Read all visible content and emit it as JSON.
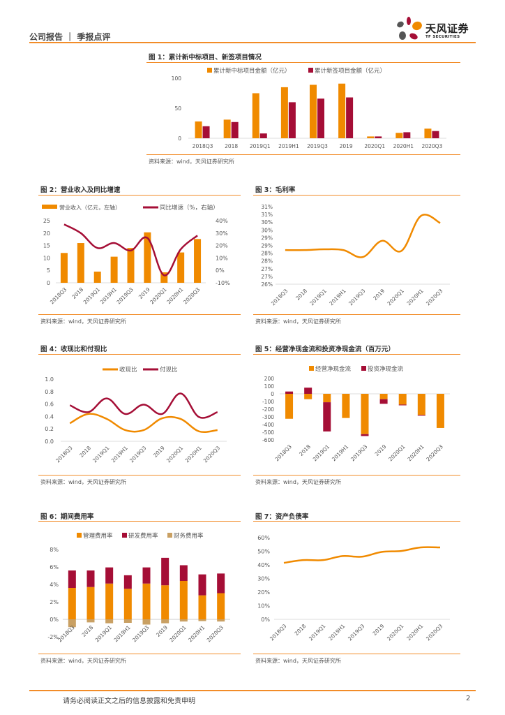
{
  "header": {
    "title": "公司报告 ｜ 季报点评",
    "logo_cn": "天风证券",
    "logo_en": "TF SECURITIES"
  },
  "source_note": "资料来源：wind，天风证券研究所",
  "footer": {
    "disclaimer": "请务必阅读正文之后的信息披露和免责申明",
    "page": "2"
  },
  "colors": {
    "orange": "#f08a00",
    "crimson": "#a50e36",
    "tan": "#c9a063",
    "accent_line": "#f28c28"
  },
  "figures": {
    "fig1": {
      "title": "图 1：累计新中标项目、新签项目情况",
      "source": "资料来源：wind，天风证券研究所"
    },
    "fig2": {
      "title": "图 2：营业收入及同比增速",
      "source": "资料来源：wind，天风证券研究所"
    },
    "fig3": {
      "title": "图 3：毛利率",
      "source": "资料来源：wind，天风证券研究所"
    },
    "fig4": {
      "title": "图 4：收现比和付现比",
      "source": "资料来源：wind，天风证券研究所"
    },
    "fig5": {
      "title": "图 5：经营净现金流和投资净现金流（百万元）",
      "source": "资料来源：wind，天风证券研究所"
    },
    "fig6": {
      "title": "图 6：期间费用率",
      "source": "资料来源：wind，天风证券研究所"
    },
    "fig7": {
      "title": "图 7：资产负债率",
      "source": "资料来源：wind，天风证券研究所"
    }
  },
  "chart_data": [
    {
      "id": "fig1",
      "type": "bar",
      "title": "累计新中标项目、新签项目情况",
      "categories": [
        "2018Q3",
        "2018",
        "2019Q1",
        "2019H1",
        "2019Q3",
        "2019",
        "2020Q1",
        "2020H1",
        "2020Q3"
      ],
      "series": [
        {
          "name": "累计新中标项目金额（亿元）",
          "values": [
            28,
            31,
            75,
            85,
            89,
            91,
            3,
            9,
            16
          ]
        },
        {
          "name": "累计新签项目金额（亿元）",
          "values": [
            20,
            27,
            8,
            60,
            66,
            68,
            3,
            10,
            12
          ]
        }
      ],
      "yticks": [
        "0",
        "50",
        "100"
      ],
      "ylim": [
        0,
        100
      ],
      "legend": "top",
      "xlabel": "",
      "ylabel": ""
    },
    {
      "id": "fig2",
      "type": "bar",
      "title": "营业收入及同比增速",
      "categories": [
        "2018Q3",
        "2018",
        "2019Q1",
        "2019H1",
        "2019Q3",
        "2019",
        "2020Q1",
        "2020H1",
        "2020Q3"
      ],
      "series": [
        {
          "name": "营业收入（亿元，左轴）",
          "kind": "bar",
          "axis": "left",
          "values": [
            12,
            16,
            4.5,
            10.5,
            14,
            20.3,
            4.2,
            12.2,
            17.6
          ]
        },
        {
          "name": "同比增速（%，右轴）",
          "kind": "line",
          "axis": "right",
          "values": [
            37,
            30,
            18,
            22,
            16,
            26,
            -4,
            17,
            28
          ]
        }
      ],
      "yticks_left": [
        "0",
        "5",
        "10",
        "15",
        "20",
        "25"
      ],
      "ylim_left": [
        0,
        25
      ],
      "yticks_right": [
        "-10%",
        "0%",
        "10%",
        "20%",
        "30%",
        "40%"
      ],
      "ylim_right": [
        -10,
        40
      ],
      "legend": "top"
    },
    {
      "id": "fig3",
      "type": "line",
      "title": "毛利率",
      "categories": [
        "2018Q3",
        "2018",
        "2019Q1",
        "2019H1",
        "2019Q3",
        "2019",
        "2020Q1",
        "2020H1",
        "2020Q3"
      ],
      "series": [
        {
          "name": "毛利率",
          "values": [
            28.2,
            28.2,
            28.25,
            28.2,
            27.75,
            28.8,
            28.15,
            30.4,
            29.95
          ]
        }
      ],
      "yticks": [
        "26%",
        "27%",
        "27%",
        "28%",
        "28%",
        "29%",
        "29%",
        "30%",
        "30%",
        "31%",
        "31%"
      ],
      "ylim": [
        26,
        31
      ],
      "legend": "none"
    },
    {
      "id": "fig4",
      "type": "line",
      "title": "收现比和付现比",
      "categories": [
        "2018Q3",
        "2018",
        "2019Q1",
        "2019H1",
        "2019Q3",
        "2019",
        "2020Q1",
        "2020H1",
        "2020Q3"
      ],
      "series": [
        {
          "name": "收现比",
          "values": [
            0.29,
            0.44,
            0.36,
            0.18,
            0.18,
            0.37,
            0.36,
            0.16,
            0.18
          ]
        },
        {
          "name": "付现比",
          "values": [
            0.58,
            0.47,
            0.69,
            0.44,
            0.59,
            0.44,
            0.77,
            0.39,
            0.47
          ]
        }
      ],
      "yticks": [
        "0.0",
        "0.2",
        "0.4",
        "0.6",
        "0.8",
        "1.0"
      ],
      "ylim": [
        0,
        1.0
      ],
      "legend": "top"
    },
    {
      "id": "fig5",
      "type": "bar",
      "stacked": true,
      "title": "经营净现金流和投资净现金流（百万元）",
      "categories": [
        "2018Q3",
        "2018",
        "2019Q1",
        "2019H1",
        "2019Q3",
        "2019",
        "2020Q1",
        "2020H1",
        "2020Q3"
      ],
      "series": [
        {
          "name": "经营净现金流",
          "values": [
            -325,
            -70,
            -110,
            -315,
            -525,
            -70,
            -140,
            -275,
            -445
          ]
        },
        {
          "name": "投资净现金流",
          "values": [
            30,
            80,
            -380,
            0,
            -25,
            -60,
            -10,
            -10,
            0
          ]
        }
      ],
      "yticks": [
        "-600",
        "-500",
        "-400",
        "-300",
        "-200",
        "-100",
        "0",
        "100",
        "200"
      ],
      "ylim": [
        -600,
        200
      ],
      "legend": "top"
    },
    {
      "id": "fig6",
      "type": "bar",
      "stacked": true,
      "title": "期间费用率",
      "categories": [
        "2018Q3",
        "2018",
        "2019Q1",
        "2019H1",
        "2019Q3",
        "2019",
        "2020Q1",
        "2020H1",
        "2020Q3"
      ],
      "series": [
        {
          "name": "管理费用率",
          "values": [
            3.6,
            3.7,
            4.1,
            3.5,
            4.1,
            3.9,
            4.4,
            2.75,
            3.0
          ]
        },
        {
          "name": "研发费用率",
          "values": [
            2.0,
            1.9,
            1.85,
            1.55,
            1.85,
            3.15,
            1.8,
            2.4,
            2.25
          ]
        },
        {
          "name": "财务费用率",
          "values": [
            -0.9,
            -0.35,
            -0.45,
            -0.4,
            -0.6,
            -0.45,
            -0.25,
            -0.2,
            -0.25
          ]
        }
      ],
      "yticks": [
        "-2%",
        "0%",
        "2%",
        "4%",
        "6%",
        "8%"
      ],
      "ylim": [
        -2,
        8
      ],
      "legend": "top"
    },
    {
      "id": "fig7",
      "type": "line",
      "title": "资产负债率",
      "categories": [
        "2018Q3",
        "2018",
        "2019Q1",
        "2019H1",
        "2019Q3",
        "2019",
        "2020Q1",
        "2020H1",
        "2020Q3"
      ],
      "series": [
        {
          "name": "资产负债率",
          "values": [
            41.5,
            43.5,
            43.5,
            46.5,
            46,
            49.5,
            50.2,
            52.8,
            52.8
          ]
        }
      ],
      "yticks": [
        "0%",
        "10%",
        "20%",
        "30%",
        "40%",
        "50%",
        "60%"
      ],
      "ylim": [
        0,
        60
      ],
      "legend": "none"
    }
  ]
}
